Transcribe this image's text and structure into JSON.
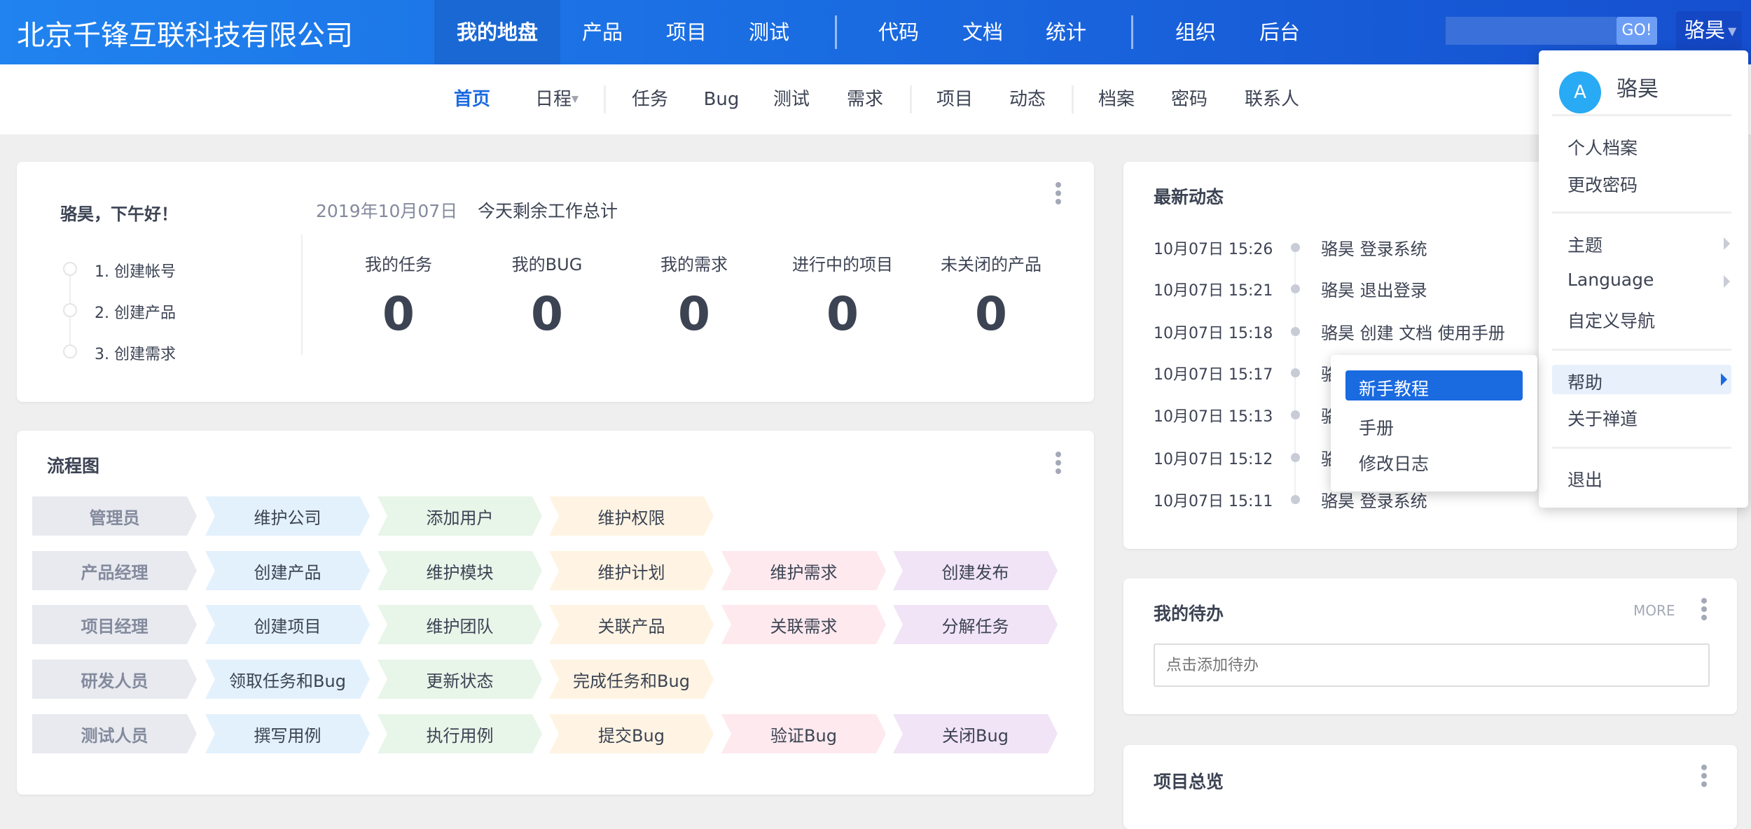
{
  "header": {
    "company": "北京千锋互联科技有限公司",
    "nav": [
      {
        "label": "我的地盘",
        "active": true
      },
      {
        "label": "产品"
      },
      {
        "label": "项目"
      },
      {
        "label": "测试"
      },
      {
        "label": "代码"
      },
      {
        "label": "文档"
      },
      {
        "label": "统计"
      },
      {
        "label": "组织"
      },
      {
        "label": "后台"
      }
    ],
    "search_value": "",
    "go_label": "GO!",
    "user": "骆昊"
  },
  "subnav": [
    {
      "label": "首页",
      "active": true
    },
    {
      "label": "日程",
      "dropdown": true
    },
    {
      "label": "任务"
    },
    {
      "label": "Bug"
    },
    {
      "label": "测试"
    },
    {
      "label": "需求"
    },
    {
      "label": "项目"
    },
    {
      "label": "动态"
    },
    {
      "label": "档案"
    },
    {
      "label": "密码"
    },
    {
      "label": "联系人"
    }
  ],
  "welcome": {
    "greeting": "骆昊，下午好！",
    "steps": [
      "1. 创建帐号",
      "2. 创建产品",
      "3. 创建需求"
    ],
    "date": "2019年10月07日",
    "summary_title": "今天剩余工作总计",
    "stats": [
      {
        "label": "我的任务",
        "value": "0"
      },
      {
        "label": "我的BUG",
        "value": "0"
      },
      {
        "label": "我的需求",
        "value": "0"
      },
      {
        "label": "进行中的项目",
        "value": "0"
      },
      {
        "label": "未关闭的产品",
        "value": "0"
      }
    ]
  },
  "flowchart": {
    "title": "流程图",
    "colors": [
      "#e8eaef",
      "#e3f1fd",
      "#e8f5e9",
      "#fff4e3",
      "#fde9ee",
      "#f1e4f6"
    ],
    "rows": [
      [
        "管理员",
        "维护公司",
        "添加用户",
        "维护权限"
      ],
      [
        "产品经理",
        "创建产品",
        "维护模块",
        "维护计划",
        "维护需求",
        "创建发布"
      ],
      [
        "项目经理",
        "创建项目",
        "维护团队",
        "关联产品",
        "关联需求",
        "分解任务"
      ],
      [
        "研发人员",
        "领取任务和Bug",
        "更新状态",
        "完成任务和Bug"
      ],
      [
        "测试人员",
        "撰写用例",
        "执行用例",
        "提交Bug",
        "验证Bug",
        "关闭Bug"
      ]
    ]
  },
  "activity": {
    "title": "最新动态",
    "items": [
      {
        "time": "10月07日 15:26",
        "text": "骆昊 登录系统"
      },
      {
        "time": "10月07日 15:21",
        "text": "骆昊 退出登录"
      },
      {
        "time": "10月07日 15:18",
        "text": "骆昊 创建 文档 使用手册"
      },
      {
        "time": "10月07日 15:17",
        "text": "骆"
      },
      {
        "time": "10月07日 15:13",
        "text": "骆"
      },
      {
        "time": "10月07日 15:12",
        "text": "骆"
      },
      {
        "time": "10月07日 15:11",
        "text": "骆昊 登录系统"
      }
    ]
  },
  "todo": {
    "title": "我的待办",
    "more": "MORE",
    "placeholder": "点击添加待办"
  },
  "next_card": {
    "title": "项目总览"
  },
  "user_menu": {
    "avatar_letter": "A",
    "name": "骆昊",
    "items": [
      "个人档案",
      "更改密码",
      "主题",
      "Language",
      "自定义导航",
      "帮助",
      "关于禅道",
      "退出"
    ],
    "active": "帮助"
  },
  "help_submenu": {
    "items": [
      "新手教程",
      "手册",
      "修改日志"
    ],
    "active": "新手教程"
  },
  "colors": {
    "primary": "#1a6ae0",
    "avatar": "#29aaf4"
  }
}
